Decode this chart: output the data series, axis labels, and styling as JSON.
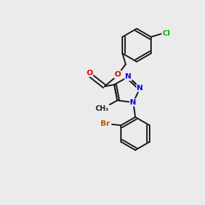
{
  "background_color": "#ebebeb",
  "bond_color": "#1a1a1a",
  "atom_colors": {
    "N": "#0000ee",
    "O": "#dd0000",
    "Cl": "#00bb00",
    "Br": "#bb5500",
    "C": "#1a1a1a"
  },
  "figsize": [
    3.0,
    3.0
  ],
  "dpi": 100
}
